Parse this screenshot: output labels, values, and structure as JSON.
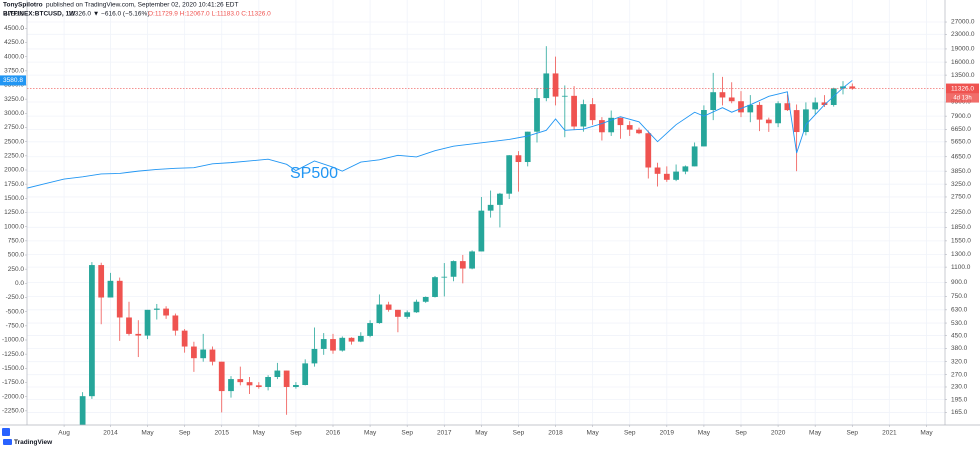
{
  "header": {
    "author": "TonySpilotro",
    "published": "published on TradingView.com, September 02, 2020 10:41:26 EDT"
  },
  "chart_data": {
    "type": "candlestick",
    "symbol": "BITFINEX:BTCUSD, 1W",
    "quote": "11326.0 ▼ −616.0 (−5.16%)",
    "ohlc": "O:11729.9 H:12067.0 L:11183.0 C:11326.0",
    "up_color": "#26a69a",
    "down_color": "#ef5350",
    "last_price_label": "11326.0",
    "countdown": "4d 13h",
    "x": [
      "2013-10",
      "2013-11",
      "2013-12",
      "2014-01",
      "2014-02",
      "2014-03",
      "2014-04",
      "2014-05",
      "2014-06",
      "2014-07",
      "2014-08",
      "2014-09",
      "2014-10",
      "2014-11",
      "2014-12",
      "2015-01",
      "2015-02",
      "2015-03",
      "2015-04",
      "2015-05",
      "2015-06",
      "2015-07",
      "2015-08",
      "2015-09",
      "2015-10",
      "2015-11",
      "2015-12",
      "2016-01",
      "2016-02",
      "2016-03",
      "2016-04",
      "2016-05",
      "2016-06",
      "2016-07",
      "2016-08",
      "2016-09",
      "2016-10",
      "2016-11",
      "2016-12",
      "2017-01",
      "2017-02",
      "2017-03",
      "2017-04",
      "2017-05",
      "2017-06",
      "2017-07",
      "2017-08",
      "2017-09",
      "2017-10",
      "2017-11",
      "2017-12",
      "2018-01",
      "2018-02",
      "2018-03",
      "2018-04",
      "2018-05",
      "2018-06",
      "2018-07",
      "2018-08",
      "2018-09",
      "2018-10",
      "2018-11",
      "2018-12",
      "2019-01",
      "2019-02",
      "2019-03",
      "2019-04",
      "2019-05",
      "2019-06",
      "2019-07",
      "2019-08",
      "2019-09",
      "2019-10",
      "2019-11",
      "2019-12",
      "2020-01",
      "2020-02",
      "2020-03",
      "2020-04",
      "2020-05",
      "2020-06",
      "2020-07",
      "2020-08",
      "2020-09"
    ],
    "open": [
      132,
      204,
      1130,
      740,
      920,
      570,
      460,
      450,
      630,
      640,
      585,
      480,
      390,
      335,
      375,
      320,
      218,
      255,
      245,
      235,
      230,
      262,
      285,
      230,
      236,
      313,
      378,
      430,
      370,
      437,
      416,
      448,
      530,
      675,
      630,
      575,
      610,
      700,
      745,
      965,
      970,
      1190,
      1080,
      1350,
      2300,
      2480,
      2870,
      4740,
      4340,
      6450,
      10000,
      13800,
      10200,
      10300,
      6900,
      9240,
      7500,
      6400,
      7730,
      7030,
      6620,
      6320,
      4040,
      3720,
      3440,
      3830,
      4100,
      5320,
      8560,
      10800,
      10080,
      9600,
      8300,
      9150,
      7550,
      7200,
      9350,
      8550,
      6420,
      8630,
      9450,
      9140,
      11350,
      11650
    ],
    "high": [
      215,
      1175,
      1165,
      1020,
      960,
      700,
      550,
      630,
      680,
      660,
      600,
      490,
      415,
      460,
      390,
      320,
      265,
      300,
      262,
      245,
      268,
      315,
      285,
      245,
      330,
      500,
      465,
      460,
      445,
      440,
      470,
      550,
      770,
      700,
      630,
      625,
      720,
      750,
      980,
      1160,
      1200,
      1290,
      1370,
      2750,
      2990,
      2900,
      4750,
      5000,
      6450,
      11400,
      19700,
      17200,
      11800,
      11700,
      9800,
      10000,
      7800,
      8500,
      7750,
      7400,
      6800,
      6550,
      4300,
      4100,
      4200,
      4150,
      5600,
      9100,
      13900,
      13200,
      12300,
      10950,
      10400,
      9500,
      7750,
      9600,
      10500,
      9200,
      9450,
      10070,
      10400,
      11450,
      12480,
      12100
    ],
    "low": [
      120,
      197,
      522,
      740,
      420,
      450,
      340,
      430,
      555,
      560,
      450,
      360,
      280,
      320,
      305,
      165,
      200,
      235,
      210,
      225,
      220,
      255,
      160,
      225,
      235,
      300,
      350,
      355,
      365,
      400,
      413,
      440,
      525,
      615,
      470,
      560,
      605,
      690,
      740,
      750,
      915,
      890,
      1070,
      1350,
      2100,
      1850,
      2680,
      2950,
      4100,
      5600,
      9600,
      9100,
      6000,
      6600,
      6450,
      7050,
      5750,
      6100,
      5880,
      6100,
      6250,
      3500,
      3150,
      3350,
      3380,
      3700,
      4100,
      5320,
      7500,
      9100,
      9350,
      7800,
      7300,
      6500,
      6430,
      6850,
      8450,
      3850,
      6150,
      8100,
      8900,
      8950,
      10500,
      11150
    ],
    "close": [
      204,
      1130,
      740,
      920,
      570,
      460,
      450,
      630,
      640,
      585,
      480,
      390,
      335,
      375,
      320,
      218,
      255,
      245,
      235,
      230,
      262,
      285,
      230,
      236,
      313,
      378,
      430,
      370,
      437,
      416,
      448,
      530,
      675,
      630,
      575,
      610,
      700,
      745,
      965,
      970,
      1190,
      1080,
      1350,
      2300,
      2480,
      2870,
      4740,
      4340,
      6450,
      10000,
      13800,
      10200,
      10300,
      6900,
      9240,
      7500,
      6400,
      7730,
      7030,
      6620,
      6320,
      4040,
      3720,
      3440,
      3830,
      4100,
      5320,
      8560,
      10800,
      10080,
      9600,
      8300,
      9150,
      7550,
      7200,
      9350,
      8550,
      6420,
      8630,
      9450,
      9140,
      11350,
      11650,
      11326
    ],
    "series": [
      {
        "name": "SP500",
        "color": "#2196f3",
        "axis": "y",
        "x": [
          "2013-04",
          "2013-06",
          "2013-08",
          "2013-10",
          "2013-12",
          "2014-02",
          "2014-04",
          "2014-06",
          "2014-08",
          "2014-10",
          "2014-12",
          "2015-02",
          "2015-04",
          "2015-06",
          "2015-08",
          "2015-09",
          "2015-11",
          "2016-01",
          "2016-02",
          "2016-04",
          "2016-06",
          "2016-08",
          "2016-10",
          "2016-12",
          "2017-02",
          "2017-04",
          "2017-06",
          "2017-08",
          "2017-10",
          "2017-12",
          "2018-01",
          "2018-02",
          "2018-04",
          "2018-06",
          "2018-08",
          "2018-10",
          "2018-12",
          "2019-02",
          "2019-04",
          "2019-05",
          "2019-07",
          "2019-08",
          "2019-10",
          "2019-12",
          "2020-02",
          "2020-03",
          "2020-04",
          "2020-06",
          "2020-08",
          "2020-09"
        ],
        "values": [
          1680,
          1760,
          1840,
          1880,
          1930,
          1940,
          1980,
          2010,
          2030,
          2040,
          2110,
          2130,
          2160,
          2190,
          2100,
          1990,
          2160,
          2050,
          1980,
          2140,
          2180,
          2260,
          2230,
          2340,
          2420,
          2460,
          2500,
          2540,
          2600,
          2700,
          2900,
          2700,
          2720,
          2820,
          2940,
          2850,
          2500,
          2800,
          3020,
          2950,
          3100,
          3020,
          3150,
          3300,
          3380,
          2300,
          2800,
          3150,
          3450,
          3580.8
        ],
        "last_value_label": "3580.8"
      }
    ],
    "xlim": [
      "2013-04",
      "2021-07"
    ],
    "xticks": [
      {
        "value": "2013-08",
        "label": "Aug"
      },
      {
        "value": "2014-01",
        "label": "2014"
      },
      {
        "value": "2014-05",
        "label": "May"
      },
      {
        "value": "2014-09",
        "label": "Sep"
      },
      {
        "value": "2015-01",
        "label": "2015"
      },
      {
        "value": "2015-05",
        "label": "May"
      },
      {
        "value": "2015-09",
        "label": "Sep"
      },
      {
        "value": "2016-01",
        "label": "2016"
      },
      {
        "value": "2016-05",
        "label": "May"
      },
      {
        "value": "2016-09",
        "label": "Sep"
      },
      {
        "value": "2017-01",
        "label": "2017"
      },
      {
        "value": "2017-05",
        "label": "May"
      },
      {
        "value": "2017-09",
        "label": "Sep"
      },
      {
        "value": "2018-01",
        "label": "2018"
      },
      {
        "value": "2018-05",
        "label": "May"
      },
      {
        "value": "2018-09",
        "label": "Sep"
      },
      {
        "value": "2019-01",
        "label": "2019"
      },
      {
        "value": "2019-05",
        "label": "May"
      },
      {
        "value": "2019-09",
        "label": "Sep"
      },
      {
        "value": "2020-01",
        "label": "2020"
      },
      {
        "value": "2020-05",
        "label": "May"
      },
      {
        "value": "2020-09",
        "label": "Sep"
      },
      {
        "value": "2021-01",
        "label": "2021"
      },
      {
        "value": "2021-05",
        "label": "May"
      }
    ],
    "ylim": [
      -2500,
      5000
    ],
    "yticks": [
      {
        "value": 4750,
        "label": "4750.0"
      },
      {
        "value": 4500,
        "label": "4500.0"
      },
      {
        "value": 4250,
        "label": "4250.0"
      },
      {
        "value": 4000,
        "label": "4000.0"
      },
      {
        "value": 3750,
        "label": "3750.0"
      },
      {
        "value": 3500,
        "label": "3500.0"
      },
      {
        "value": 3250,
        "label": "3250.0"
      },
      {
        "value": 3000,
        "label": "3000.0"
      },
      {
        "value": 2750,
        "label": "2750.0"
      },
      {
        "value": 2500,
        "label": "2500.0"
      },
      {
        "value": 2250,
        "label": "2250.0"
      },
      {
        "value": 2000,
        "label": "2000.0"
      },
      {
        "value": 1750,
        "label": "1750.0"
      },
      {
        "value": 1500,
        "label": "1500.0"
      },
      {
        "value": 1250,
        "label": "1250.0"
      },
      {
        "value": 1000,
        "label": "1000.0"
      },
      {
        "value": 750,
        "label": "750.0"
      },
      {
        "value": 500,
        "label": "500.0"
      },
      {
        "value": 250,
        "label": "250.0"
      },
      {
        "value": 0,
        "label": "0.0"
      },
      {
        "value": -250,
        "label": "-250.0"
      },
      {
        "value": -500,
        "label": "-500.0"
      },
      {
        "value": -750,
        "label": "-750.0"
      },
      {
        "value": -1000,
        "label": "-1000.0"
      },
      {
        "value": -1250,
        "label": "-1250.0"
      },
      {
        "value": -1500,
        "label": "-1500.0"
      },
      {
        "value": -1750,
        "label": "-1750.0"
      },
      {
        "value": -2000,
        "label": "-2000.0"
      },
      {
        "value": -2250,
        "label": "-2250.0"
      }
    ],
    "y2lim": [
      140,
      36000
    ],
    "y2scale": "log",
    "y2ticks": [
      {
        "value": 27000,
        "label": "27000.0"
      },
      {
        "value": 23000,
        "label": "23000.0"
      },
      {
        "value": 19000,
        "label": "19000.0"
      },
      {
        "value": 16000,
        "label": "16000.0"
      },
      {
        "value": 13500,
        "label": "13500.0"
      },
      {
        "value": 9500,
        "label": "9500.0"
      },
      {
        "value": 7900,
        "label": "7900.0"
      },
      {
        "value": 6650,
        "label": "6650.0"
      },
      {
        "value": 5650,
        "label": "5650.0"
      },
      {
        "value": 4650,
        "label": "4650.0"
      },
      {
        "value": 3850,
        "label": "3850.0"
      },
      {
        "value": 3250,
        "label": "3250.0"
      },
      {
        "value": 2750,
        "label": "2750.0"
      },
      {
        "value": 2250,
        "label": "2250.0"
      },
      {
        "value": 1850,
        "label": "1850.0"
      },
      {
        "value": 1550,
        "label": "1550.0"
      },
      {
        "value": 1300,
        "label": "1300.0"
      },
      {
        "value": 1100,
        "label": "1100.0"
      },
      {
        "value": 900,
        "label": "900.0"
      },
      {
        "value": 750,
        "label": "750.0"
      },
      {
        "value": 630,
        "label": "630.0"
      },
      {
        "value": 530,
        "label": "530.0"
      },
      {
        "value": 450,
        "label": "450.0"
      },
      {
        "value": 380,
        "label": "380.0"
      },
      {
        "value": 320,
        "label": "320.0"
      },
      {
        "value": 270,
        "label": "270.0"
      },
      {
        "value": 230,
        "label": "230.0"
      },
      {
        "value": 195,
        "label": "195.0"
      },
      {
        "value": 165,
        "label": "165.0"
      }
    ],
    "grid": true
  },
  "footer": {
    "brand": "TradingView"
  }
}
